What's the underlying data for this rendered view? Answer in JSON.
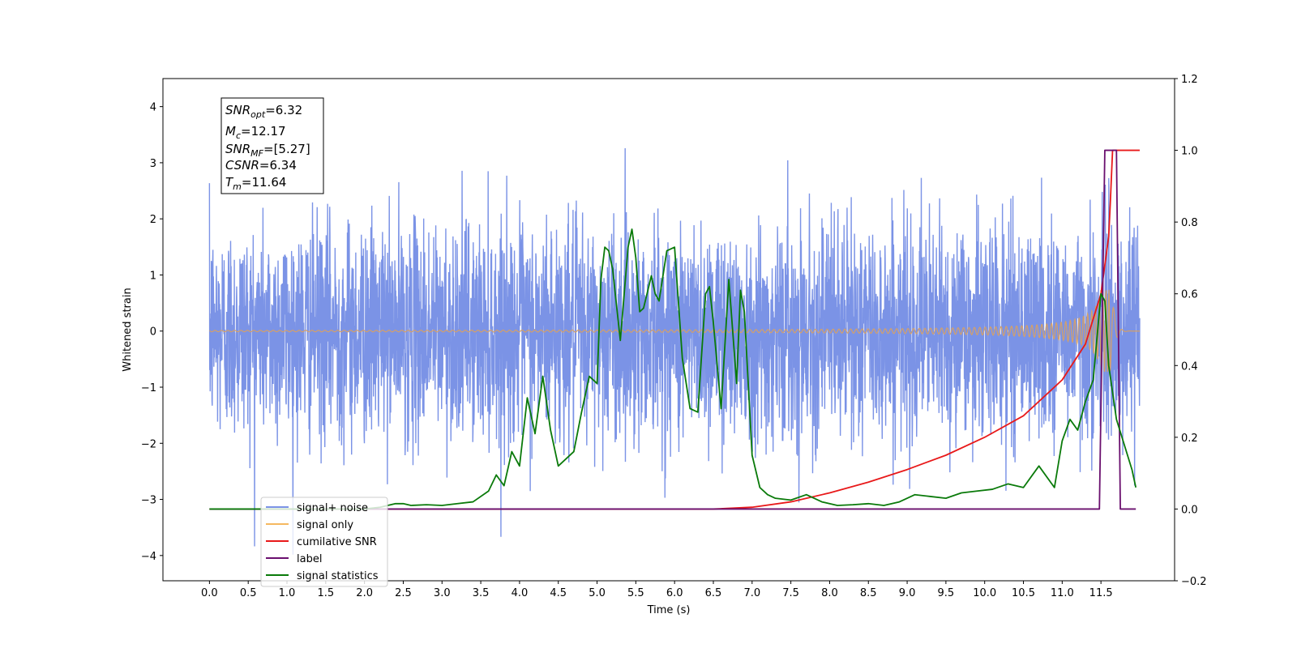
{
  "chart_data": {
    "type": "line",
    "xlabel": "Time (s)",
    "ylabel": "Whitened strain",
    "xlim": [
      -0.6,
      12.45
    ],
    "ylim": [
      -4.45,
      4.5
    ],
    "ylim_right": [
      -0.2,
      1.2
    ],
    "x_ticks": [
      "0.0",
      "0.5",
      "1.0",
      "1.5",
      "2.0",
      "2.5",
      "3.0",
      "3.5",
      "4.0",
      "4.5",
      "5.0",
      "5.5",
      "6.0",
      "6.5",
      "7.0",
      "7.5",
      "8.0",
      "8.5",
      "9.0",
      "9.5",
      "10.0",
      "10.5",
      "11.0",
      "11.5"
    ],
    "y_ticks": [
      "−4",
      "−3",
      "−2",
      "−1",
      "0",
      "1",
      "2",
      "3",
      "4"
    ],
    "y_ticks_right": [
      "−0.2",
      "0.0",
      "0.2",
      "0.4",
      "0.6",
      "0.8",
      "1.0",
      "1.2"
    ],
    "info_box": {
      "snr_opt": {
        "base": "SNR",
        "sub": "opt",
        "value": "=6.32"
      },
      "mc": {
        "base": "M",
        "sub": "c",
        "value": "=12.17"
      },
      "snr_mf": {
        "base": "SNR",
        "sub": "MF",
        "value": "=[5.27]"
      },
      "csnr": {
        "base": "CSNR",
        "sub": "",
        "value": "=6.34"
      },
      "tm": {
        "base": "T",
        "sub": "m",
        "value": "=11.64"
      }
    },
    "legend": {
      "placement": "lower-left",
      "entries": [
        {
          "label": "signal+ noise",
          "color": "#7b93e6"
        },
        {
          "label": "signal only",
          "color": "#f5b860"
        },
        {
          "label": "cumilative SNR",
          "color": "#e8191a"
        },
        {
          "label": "label",
          "color": "#6a0f6e"
        },
        {
          "label": "signal statistics",
          "color": "#0a7a0a"
        }
      ]
    },
    "noise": {
      "t_start": 0.0,
      "t_end": 12.0,
      "std": 0.95
    },
    "signal_only": {
      "t_start": 0.0,
      "t_end": 12.0,
      "t_merge": 11.64
    },
    "series": [
      {
        "name": "cumilative SNR",
        "axis": "right",
        "color": "#e8191a",
        "x": [
          0.0,
          6.5,
          7.0,
          7.5,
          8.0,
          8.5,
          9.0,
          9.5,
          10.0,
          10.5,
          11.0,
          11.3,
          11.5,
          11.6,
          11.62,
          11.64,
          11.65,
          11.7,
          11.8,
          11.9,
          12.0
        ],
        "y": [
          0.0,
          0.0,
          0.005,
          0.02,
          0.045,
          0.075,
          0.11,
          0.15,
          0.2,
          0.26,
          0.36,
          0.46,
          0.6,
          0.76,
          0.85,
          0.95,
          1.0,
          1.0,
          1.0,
          1.0,
          1.0
        ]
      },
      {
        "name": "label",
        "axis": "right",
        "color": "#6a0f6e",
        "x": [
          0.0,
          11.48,
          11.55,
          11.7,
          11.75,
          11.95
        ],
        "y": [
          0.0,
          0.0,
          1.0,
          1.0,
          0.0,
          0.0
        ]
      },
      {
        "name": "signal statistics",
        "axis": "right",
        "color": "#0a7a0a",
        "x": [
          0.0,
          0.5,
          1.0,
          1.5,
          2.0,
          2.2,
          2.3,
          2.4,
          2.5,
          2.6,
          2.8,
          3.0,
          3.2,
          3.4,
          3.6,
          3.7,
          3.8,
          3.9,
          4.0,
          4.1,
          4.2,
          4.3,
          4.4,
          4.5,
          4.6,
          4.7,
          4.8,
          4.9,
          5.0,
          5.05,
          5.1,
          5.15,
          5.2,
          5.3,
          5.4,
          5.45,
          5.5,
          5.55,
          5.6,
          5.7,
          5.75,
          5.8,
          5.9,
          6.0,
          6.1,
          6.2,
          6.3,
          6.4,
          6.45,
          6.5,
          6.6,
          6.7,
          6.8,
          6.85,
          6.9,
          7.0,
          7.1,
          7.2,
          7.3,
          7.5,
          7.7,
          7.9,
          8.1,
          8.3,
          8.5,
          8.7,
          8.9,
          9.1,
          9.3,
          9.5,
          9.7,
          9.9,
          10.1,
          10.3,
          10.5,
          10.7,
          10.9,
          11.0,
          11.1,
          11.2,
          11.3,
          11.4,
          11.5,
          11.55,
          11.6,
          11.7,
          11.8,
          11.9,
          11.95
        ],
        "y": [
          0.0,
          0.0,
          0.0,
          0.0,
          0.0,
          0.005,
          0.01,
          0.015,
          0.015,
          0.01,
          0.012,
          0.01,
          0.015,
          0.02,
          0.05,
          0.095,
          0.065,
          0.16,
          0.12,
          0.31,
          0.21,
          0.37,
          0.22,
          0.12,
          0.14,
          0.16,
          0.27,
          0.37,
          0.35,
          0.64,
          0.73,
          0.72,
          0.67,
          0.47,
          0.73,
          0.78,
          0.7,
          0.55,
          0.56,
          0.65,
          0.6,
          0.58,
          0.72,
          0.73,
          0.42,
          0.28,
          0.27,
          0.6,
          0.62,
          0.52,
          0.28,
          0.64,
          0.35,
          0.61,
          0.55,
          0.15,
          0.06,
          0.04,
          0.03,
          0.025,
          0.04,
          0.02,
          0.01,
          0.012,
          0.015,
          0.01,
          0.02,
          0.04,
          0.035,
          0.03,
          0.045,
          0.05,
          0.055,
          0.07,
          0.06,
          0.12,
          0.06,
          0.19,
          0.25,
          0.22,
          0.3,
          0.36,
          0.6,
          0.58,
          0.4,
          0.25,
          0.18,
          0.11,
          0.06
        ]
      }
    ]
  },
  "colors": {
    "noise": "#7b93e6",
    "signal_only": "#d4a06a",
    "axes": "#000000"
  }
}
